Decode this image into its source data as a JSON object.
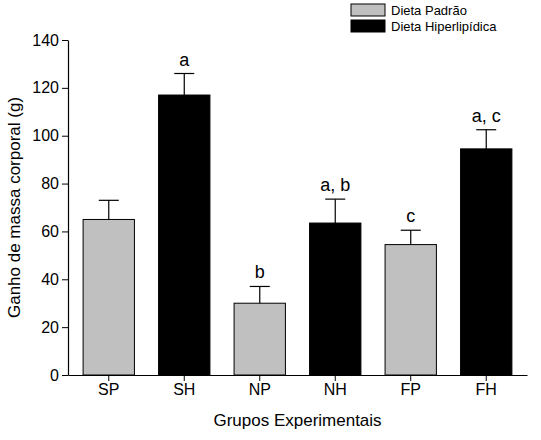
{
  "chart_data": {
    "type": "bar",
    "categories": [
      "SP",
      "SH",
      "NP",
      "NH",
      "FP",
      "FH"
    ],
    "series": [
      {
        "name": "Dieta Padrão",
        "color": "#c0c0c0",
        "values": [
          65,
          null,
          30,
          null,
          54.5,
          null
        ],
        "errors": [
          8,
          null,
          7,
          null,
          6,
          null
        ],
        "annotations": [
          null,
          null,
          "b",
          null,
          "c",
          null
        ]
      },
      {
        "name": "Dieta Hiperlipídica",
        "color": "#000000",
        "values": [
          null,
          117,
          null,
          63.5,
          null,
          94.5
        ],
        "errors": [
          null,
          9,
          null,
          10,
          null,
          8
        ],
        "annotations": [
          null,
          "a",
          null,
          "a, b",
          null,
          "a, c"
        ]
      }
    ],
    "x_label": "Grupos Experimentais",
    "y_label": "Ganho de massa corporal (g)",
    "ylim": [
      0,
      140
    ],
    "yticks": [
      0,
      20,
      40,
      60,
      80,
      100,
      120,
      140
    ],
    "legend": "upper right",
    "grid": false
  }
}
